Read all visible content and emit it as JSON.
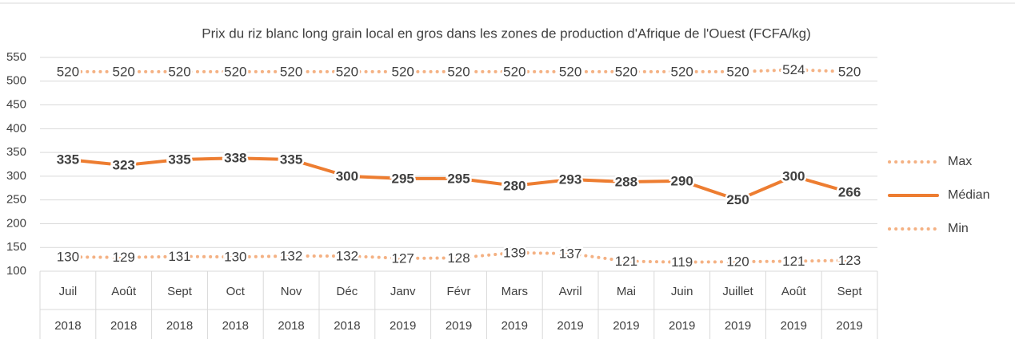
{
  "chart_data": {
    "type": "line",
    "title": "Prix du riz blanc long grain local en gros dans les zones de production d'Afrique de l'Ouest (FCFA/kg)",
    "categories": [
      "Juil",
      "Août",
      "Sept",
      "Oct",
      "Nov",
      "Déc",
      "Janv",
      "Févr",
      "Mars",
      "Avril",
      "Mai",
      "Juin",
      "Juillet",
      "Août",
      "Sept"
    ],
    "category_years": [
      "2018",
      "2018",
      "2018",
      "2018",
      "2018",
      "2018",
      "2019",
      "2019",
      "2019",
      "2019",
      "2019",
      "2019",
      "2019",
      "2019",
      "2019"
    ],
    "series": [
      {
        "name": "Max",
        "color": "#f4b183",
        "line_style": "dotted",
        "label_weight": "normal",
        "values": [
          520,
          520,
          520,
          520,
          520,
          520,
          520,
          520,
          520,
          520,
          520,
          520,
          520,
          524,
          520
        ]
      },
      {
        "name": "Médian",
        "color": "#ed7d31",
        "line_style": "solid",
        "label_weight": "bold",
        "values": [
          335,
          323,
          335,
          338,
          335,
          300,
          295,
          295,
          280,
          293,
          288,
          290,
          250,
          300,
          266
        ]
      },
      {
        "name": "Min",
        "color": "#f4b183",
        "line_style": "dotted",
        "label_weight": "normal",
        "values": [
          130,
          129,
          131,
          130,
          132,
          132,
          127,
          128,
          139,
          137,
          121,
          119,
          120,
          121,
          123
        ]
      }
    ],
    "ylim": [
      100,
      550
    ],
    "yticks": [
      100,
      150,
      200,
      250,
      300,
      350,
      400,
      450,
      500,
      550
    ],
    "grid": true,
    "legend": "right"
  }
}
